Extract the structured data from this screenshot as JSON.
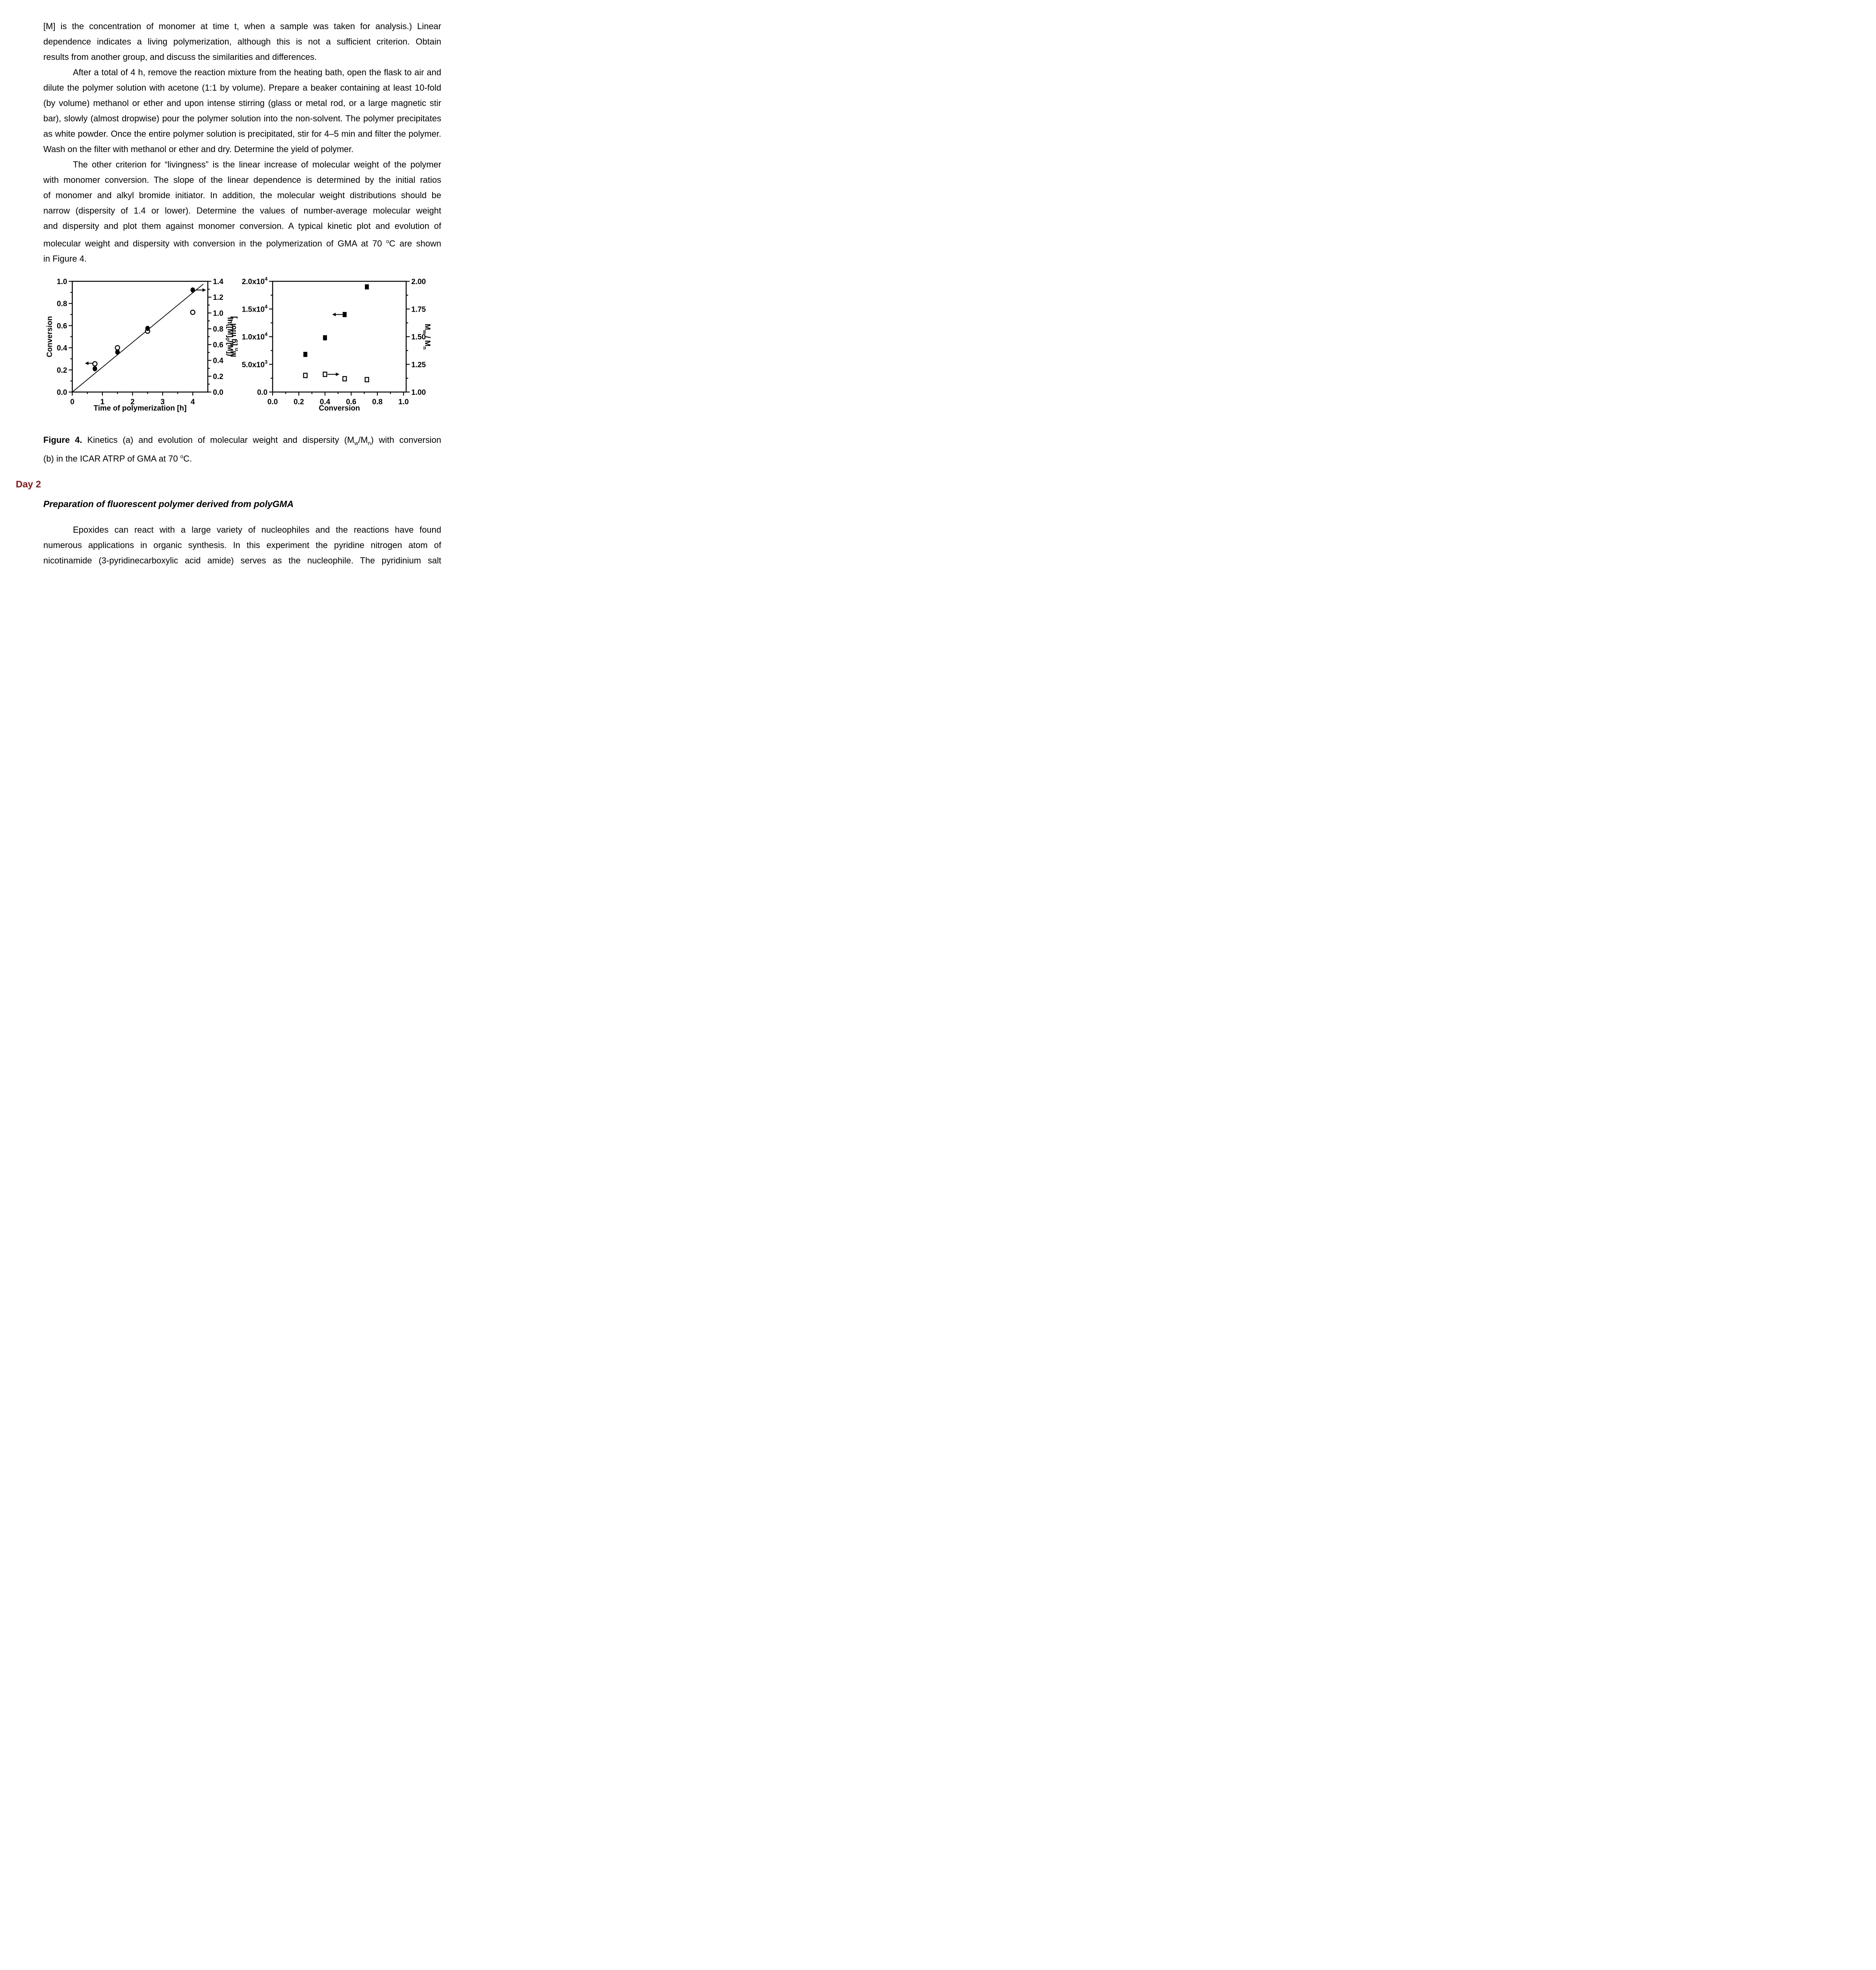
{
  "document": {
    "p1": {
      "indent": false,
      "lines": [
        [
          {
            "t": "[M] is the concentration of monomer at time t, when a sample was taken for analysis.) Linear"
          }
        ],
        [
          {
            "t": "dependence indicates a living polymerization, although this is not a sufficient criterion.  Obtain"
          }
        ],
        [
          {
            "t": "results from another group, and discuss the similarities and differences."
          }
        ]
      ]
    },
    "p2": {
      "indent": true,
      "lines": [
        [
          {
            "t": "After a total of 4 h, remove the reaction mixture from the heating bath, open the flask to air and"
          }
        ],
        [
          {
            "t": "dilute the polymer solution with acetone (1:1 by volume). Prepare a beaker containing at least 10-fold"
          }
        ],
        [
          {
            "t": "(by volume) methanol or ether and upon intense stirring (glass or metal rod, or a large magnetic stir"
          }
        ],
        [
          {
            "t": "bar), slowly (almost dropwise) pour the polymer solution into the non-solvent. The polymer precipitates"
          }
        ],
        [
          {
            "t": "as white powder. Once the entire polymer solution is precipitated, stir for 4–5 min and filter the polymer."
          }
        ],
        [
          {
            "t": "Wash on the filter with methanol or ether and dry. Determine the yield of polymer."
          }
        ]
      ]
    },
    "p3": {
      "indent": true,
      "lines": [
        [
          {
            "t": "The other criterion for “livingness” is the linear increase of molecular weight of the polymer"
          }
        ],
        [
          {
            "t": "with monomer conversion. The slope of the linear dependence is determined by the initial ratios"
          }
        ],
        [
          {
            "t": "of monomer and alkyl bromide initiator. In addition, the molecular weight distributions should be"
          }
        ],
        [
          {
            "t": "narrow (dispersity of 1.4 or lower). Determine the values of number-average molecular weight"
          }
        ],
        [
          {
            "t": "and dispersity and plot them against monomer conversion. A typical kinetic plot and evolution of"
          }
        ],
        [
          {
            "t": "molecular weight and dispersity with conversion in the polymerization of GMA at 70 "
          },
          {
            "t": "o",
            "s": "sup"
          },
          {
            "t": "C are shown"
          }
        ],
        [
          {
            "t": "in Figure 4."
          }
        ]
      ]
    },
    "caption": {
      "indent": false,
      "lines": [
        [
          {
            "t": "Figure 4.",
            "s": "b"
          },
          {
            "t": " Kinetics (a) and evolution of molecular weight and dispersity (M"
          },
          {
            "t": "w",
            "s": "sub"
          },
          {
            "t": "/M"
          },
          {
            "t": "n",
            "s": "sub"
          },
          {
            "t": ") with conversion"
          }
        ],
        [
          {
            "t": "(b) in the ICAR ATRP of GMA at 70 "
          },
          {
            "t": "o",
            "s": "sup"
          },
          {
            "t": "C."
          }
        ]
      ]
    },
    "day2_label": "Day 2",
    "section_heading": "Preparation of fluorescent polymer derived from polyGMA",
    "p4": {
      "indent": true,
      "justify_last": true,
      "lines": [
        [
          {
            "t": "Epoxides can react with a large variety of nucleophiles and the reactions have found"
          }
        ],
        [
          {
            "t": "numerous applications in organic synthesis. In this experiment the pyridine nitrogen atom of"
          }
        ],
        [
          {
            "t": "nicotinamide (3-pyridinecarboxylic acid amide) serves as the nucleophile. The pyridinium salt"
          }
        ]
      ]
    }
  },
  "colors": {
    "page_bg": "#ffffff",
    "ink": "#000000",
    "day2_red": "#8b1414"
  },
  "chart_data": [
    {
      "panel": "a",
      "type": "scatter",
      "xlabel": "Time of polymerization [h]",
      "ylabel_left": [
        {
          "t": "Conversion"
        }
      ],
      "ylabel_right": [
        {
          "t": "ln([M]"
        },
        {
          "t": "0",
          "s": "sub"
        },
        {
          "t": "/[M])"
        }
      ],
      "xlim": [
        0,
        4.5
      ],
      "xticks": [
        {
          "v": 0,
          "label": [
            {
              "t": "0"
            }
          ]
        },
        {
          "v": 1,
          "label": [
            {
              "t": "1"
            }
          ]
        },
        {
          "v": 2,
          "label": [
            {
              "t": "2"
            }
          ]
        },
        {
          "v": 3,
          "label": [
            {
              "t": "3"
            }
          ]
        },
        {
          "v": 4,
          "label": [
            {
              "t": "4"
            }
          ]
        }
      ],
      "xminor": 0.5,
      "ylim_left": [
        0,
        1.0
      ],
      "yticks_left": [
        {
          "v": 0,
          "label": [
            {
              "t": "0.0"
            }
          ]
        },
        {
          "v": 0.2,
          "label": [
            {
              "t": "0.2"
            }
          ]
        },
        {
          "v": 0.4,
          "label": [
            {
              "t": "0.4"
            }
          ]
        },
        {
          "v": 0.6,
          "label": [
            {
              "t": "0.6"
            }
          ]
        },
        {
          "v": 0.8,
          "label": [
            {
              "t": "0.8"
            }
          ]
        },
        {
          "v": 1.0,
          "label": [
            {
              "t": "1.0"
            }
          ]
        }
      ],
      "yminor_left": 0.1,
      "ylim_right": [
        0,
        1.4
      ],
      "yticks_right": [
        {
          "v": 0,
          "label": [
            {
              "t": "0.0"
            }
          ]
        },
        {
          "v": 0.2,
          "label": [
            {
              "t": "0.2"
            }
          ]
        },
        {
          "v": 0.4,
          "label": [
            {
              "t": "0.4"
            }
          ]
        },
        {
          "v": 0.6,
          "label": [
            {
              "t": "0.6"
            }
          ]
        },
        {
          "v": 0.8,
          "label": [
            {
              "t": "0.8"
            }
          ]
        },
        {
          "v": 1.0,
          "label": [
            {
              "t": "1.0"
            }
          ]
        },
        {
          "v": 1.2,
          "label": [
            {
              "t": "1.2"
            }
          ]
        },
        {
          "v": 1.4,
          "label": [
            {
              "t": "1.4"
            }
          ]
        }
      ],
      "yminor_right": 0.1,
      "series": [
        {
          "name": "conversion",
          "axis": "left",
          "marker": "circle_open",
          "points": [
            [
              0.75,
              0.255
            ],
            [
              1.5,
              0.4
            ],
            [
              2.5,
              0.55
            ],
            [
              4.0,
              0.72
            ]
          ]
        },
        {
          "name": "ln([M]0/[M])",
          "axis": "right",
          "marker": "circle_filled",
          "points": [
            [
              0.75,
              0.295
            ],
            [
              1.5,
              0.505
            ],
            [
              2.5,
              0.805
            ],
            [
              4.0,
              1.29
            ]
          ]
        }
      ],
      "fit_line": {
        "axis": "left",
        "from": [
          0,
          0
        ],
        "to": [
          4.35,
          0.975
        ]
      },
      "arrows": [
        {
          "axis": "left",
          "y": 0.26,
          "x_from": 0.7,
          "x_to": 0.42
        },
        {
          "axis": "right",
          "y": 1.29,
          "x_from": 4.09,
          "x_to": 4.44
        }
      ]
    },
    {
      "panel": "b",
      "type": "scatter",
      "xlabel": "Conversion",
      "ylabel_left": [
        {
          "t": "M"
        },
        {
          "t": "n",
          "s": "sub"
        },
        {
          "t": " [g mol"
        },
        {
          "t": "-1",
          "s": "sup"
        },
        {
          "t": "]"
        }
      ],
      "ylabel_right": [
        {
          "t": "M"
        },
        {
          "t": "w",
          "s": "sub"
        },
        {
          "t": " / M"
        },
        {
          "t": "n",
          "s": "sub"
        }
      ],
      "xlim": [
        0,
        1.02
      ],
      "xticks": [
        {
          "v": 0,
          "label": [
            {
              "t": "0.0"
            }
          ]
        },
        {
          "v": 0.2,
          "label": [
            {
              "t": "0.2"
            }
          ]
        },
        {
          "v": 0.4,
          "label": [
            {
              "t": "0.4"
            }
          ]
        },
        {
          "v": 0.6,
          "label": [
            {
              "t": "0.6"
            }
          ]
        },
        {
          "v": 0.8,
          "label": [
            {
              "t": "0.8"
            }
          ]
        },
        {
          "v": 1.0,
          "label": [
            {
              "t": "1.0"
            }
          ]
        }
      ],
      "xminor": 0.1,
      "ylim_left": [
        0,
        20000
      ],
      "yticks_left": [
        {
          "v": 0,
          "label": [
            {
              "t": "0.0"
            }
          ]
        },
        {
          "v": 5000,
          "label": [
            {
              "t": "5.0x10"
            },
            {
              "t": "3",
              "s": "sup"
            }
          ]
        },
        {
          "v": 10000,
          "label": [
            {
              "t": "1.0x10"
            },
            {
              "t": "4",
              "s": "sup"
            }
          ]
        },
        {
          "v": 15000,
          "label": [
            {
              "t": "1.5x10"
            },
            {
              "t": "4",
              "s": "sup"
            }
          ]
        },
        {
          "v": 20000,
          "label": [
            {
              "t": "2.0x10"
            },
            {
              "t": "4",
              "s": "sup"
            }
          ]
        }
      ],
      "yminor_left": 2500,
      "ylim_right": [
        1.0,
        2.0
      ],
      "yticks_right": [
        {
          "v": 1.0,
          "label": [
            {
              "t": "1.00"
            }
          ]
        },
        {
          "v": 1.25,
          "label": [
            {
              "t": "1.25"
            }
          ]
        },
        {
          "v": 1.5,
          "label": [
            {
              "t": "1.50"
            }
          ]
        },
        {
          "v": 1.75,
          "label": [
            {
              "t": "1.75"
            }
          ]
        },
        {
          "v": 2.0,
          "label": [
            {
              "t": "2.00"
            }
          ]
        }
      ],
      "yminor_right": 0.125,
      "series": [
        {
          "name": "Mn",
          "axis": "left",
          "marker": "square_filled",
          "points": [
            [
              0.25,
              6800
            ],
            [
              0.4,
              9800
            ],
            [
              0.55,
              14000
            ],
            [
              0.72,
              19000
            ]
          ]
        },
        {
          "name": "Mw/Mn",
          "axis": "right",
          "marker": "square_open",
          "points": [
            [
              0.25,
              1.15
            ],
            [
              0.4,
              1.16
            ],
            [
              0.55,
              1.12
            ],
            [
              0.72,
              1.112
            ]
          ]
        }
      ],
      "arrows": [
        {
          "axis": "left",
          "y": 14000,
          "x_from": 0.535,
          "x_to": 0.455
        },
        {
          "axis": "right",
          "y": 1.16,
          "x_from": 0.42,
          "x_to": 0.51
        }
      ]
    }
  ]
}
